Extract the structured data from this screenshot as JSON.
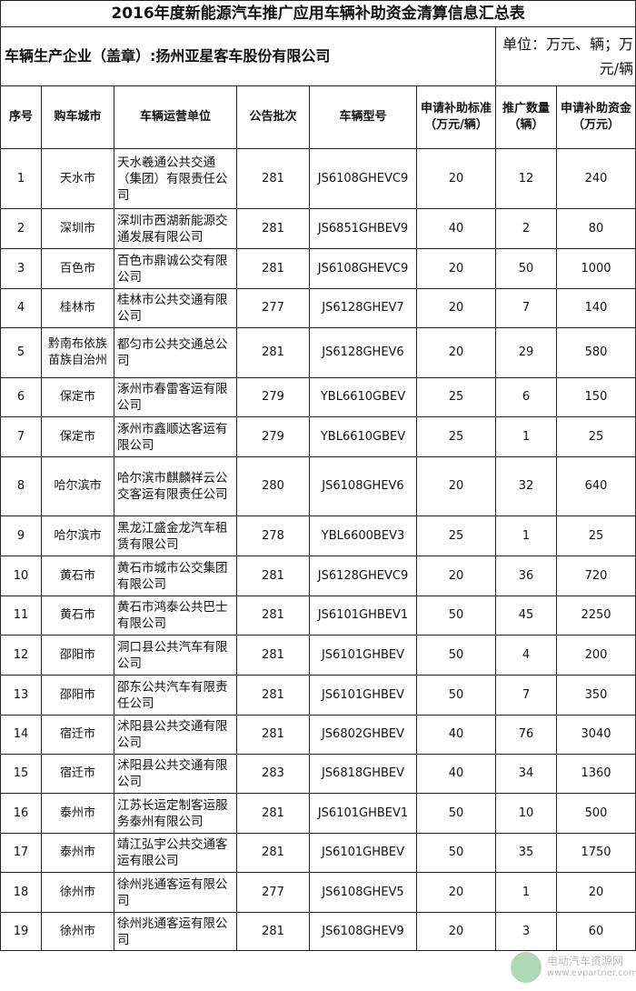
{
  "title": "2016年度新能源汽车推广应用车辆补助资金清算信息汇总表",
  "company": "车辆生产企业（盖章）:扬州亚星客车股份有限公司",
  "unit": "单位：万元、辆；万元/辆",
  "headers": [
    "序号",
    "购车城市",
    "车辆运营单位",
    "公告批次",
    "车辆型号",
    "申请补助标准（万元/辆）",
    "推广数量（辆）",
    "申请补助资金（万元）"
  ],
  "rows": [
    [
      "1",
      "天水市",
      "天水羲通公共交通（集团）有限责任公司",
      "281",
      "JS6108GHEVC9",
      "20",
      "12",
      "240"
    ],
    [
      "2",
      "深圳市",
      "深圳市西湖新能源交通发展有限公司",
      "281",
      "JS6851GHBEV9",
      "40",
      "2",
      "80"
    ],
    [
      "3",
      "百色市",
      "百色市鼎诚公交有限公司",
      "281",
      "JS6108GHEVC9",
      "20",
      "50",
      "1000"
    ],
    [
      "4",
      "桂林市",
      "桂林市公共交通有限公司",
      "277",
      "JS6128GHEV7",
      "20",
      "7",
      "140"
    ],
    [
      "5",
      "黔南布依族苗族自治州",
      "都匀市公共交通总公司",
      "281",
      "JS6128GHEV6",
      "20",
      "29",
      "580"
    ],
    [
      "6",
      "保定市",
      "涿州市春雷客运有限公司",
      "279",
      "YBL6610GBEV",
      "25",
      "6",
      "150"
    ],
    [
      "7",
      "保定市",
      "涿州市鑫顺达客运有限公司",
      "279",
      "YBL6610GBEV",
      "25",
      "1",
      "25"
    ],
    [
      "8",
      "哈尔滨市",
      "哈尔滨市麒麟祥云公交客运有限责任公司",
      "280",
      "JS6108GHEV6",
      "20",
      "32",
      "640"
    ],
    [
      "9",
      "哈尔滨市",
      "黑龙江盛金龙汽车租赁有限公司",
      "278",
      "YBL6600BEV3",
      "25",
      "1",
      "25"
    ],
    [
      "10",
      "黄石市",
      "黄石市城市公交集团有限公司",
      "281",
      "JS6128GHEVC9",
      "20",
      "36",
      "720"
    ],
    [
      "11",
      "黄石市",
      "黄石市鸿泰公共巴士有限公司",
      "281",
      "JS6101GHBEV1",
      "50",
      "45",
      "2250"
    ],
    [
      "12",
      "邵阳市",
      "洞口县公共汽车有限公司",
      "281",
      "JS6101GHBEV",
      "50",
      "4",
      "200"
    ],
    [
      "13",
      "邵阳市",
      "邵东公共汽车有限责任公司",
      "281",
      "JS6101GHBEV",
      "50",
      "7",
      "350"
    ],
    [
      "14",
      "宿迁市",
      "沭阳县公共交通有限公司",
      "281",
      "JS6802GHBEV",
      "40",
      "76",
      "3040"
    ],
    [
      "15",
      "宿迁市",
      "沭阳县公共交通有限公司",
      "283",
      "JS6818GHBEV",
      "40",
      "34",
      "1360"
    ],
    [
      "16",
      "泰州市",
      "江苏长运定制客运服务泰州有限公司",
      "281",
      "JS6101GHBEV1",
      "50",
      "10",
      "500"
    ],
    [
      "17",
      "泰州市",
      "靖江弘宇公共交通客运有限公司",
      "281",
      "JS6101GHBEV",
      "50",
      "35",
      "1750"
    ],
    [
      "18",
      "徐州市",
      "徐州兆通客运有限公司",
      "277",
      "JS6108GHEV5",
      "20",
      "1",
      "20"
    ],
    [
      "19",
      "徐州市",
      "徐州兆通客运有限公司",
      "281",
      "JS6108GHEV9",
      "20",
      "3",
      "60"
    ]
  ],
  "watermark": {
    "name": "电动汽车资源网",
    "url": "www.evpartner.com",
    "icon": "evpartner-logo-icon"
  }
}
